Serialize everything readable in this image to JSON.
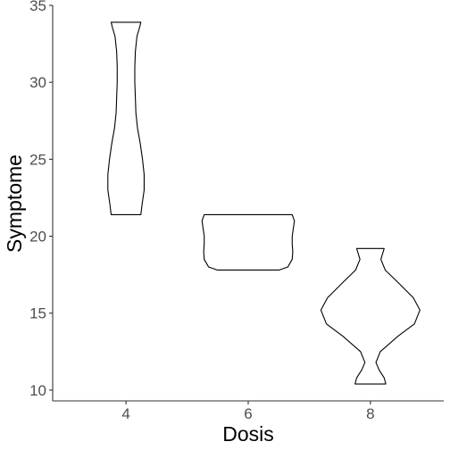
{
  "chart_data": {
    "type": "violin",
    "title": "",
    "xlabel": "Dosis",
    "ylabel": "Symptome",
    "categories": [
      "4",
      "6",
      "8"
    ],
    "y_ticks": [
      "10",
      "15",
      "20",
      "25",
      "30",
      "35"
    ],
    "ylim": [
      9.3,
      35
    ],
    "grid": false,
    "legend": "none",
    "stroke_color": "#000000",
    "fill_color": "none",
    "violins": [
      {
        "category": "4",
        "min": 21.4,
        "max": 33.9,
        "profile": [
          [
            21.4,
            0.27
          ],
          [
            22.0,
            0.29
          ],
          [
            23.0,
            0.33
          ],
          [
            24.0,
            0.33
          ],
          [
            25.0,
            0.3
          ],
          [
            26.0,
            0.26
          ],
          [
            27.0,
            0.21
          ],
          [
            28.0,
            0.18
          ],
          [
            29.0,
            0.17
          ],
          [
            30.0,
            0.16
          ],
          [
            31.0,
            0.16
          ],
          [
            32.0,
            0.17
          ],
          [
            33.0,
            0.2
          ],
          [
            33.6,
            0.25
          ],
          [
            33.9,
            0.27
          ]
        ]
      },
      {
        "category": "6",
        "min": 17.8,
        "max": 21.4,
        "profile": [
          [
            17.8,
            0.56
          ],
          [
            18.0,
            0.72
          ],
          [
            18.5,
            0.8
          ],
          [
            19.0,
            0.81
          ],
          [
            19.5,
            0.8
          ],
          [
            20.0,
            0.8
          ],
          [
            20.5,
            0.82
          ],
          [
            21.0,
            0.84
          ],
          [
            21.4,
            0.8
          ]
        ]
      },
      {
        "category": "8",
        "min": 10.4,
        "max": 19.2,
        "profile": [
          [
            10.4,
            0.28
          ],
          [
            10.8,
            0.25
          ],
          [
            11.3,
            0.16
          ],
          [
            11.8,
            0.1
          ],
          [
            12.5,
            0.18
          ],
          [
            13.5,
            0.5
          ],
          [
            14.3,
            0.8
          ],
          [
            15.2,
            0.9
          ],
          [
            16.0,
            0.78
          ],
          [
            17.0,
            0.5
          ],
          [
            17.8,
            0.27
          ],
          [
            18.5,
            0.19
          ],
          [
            19.2,
            0.25
          ]
        ]
      }
    ]
  }
}
